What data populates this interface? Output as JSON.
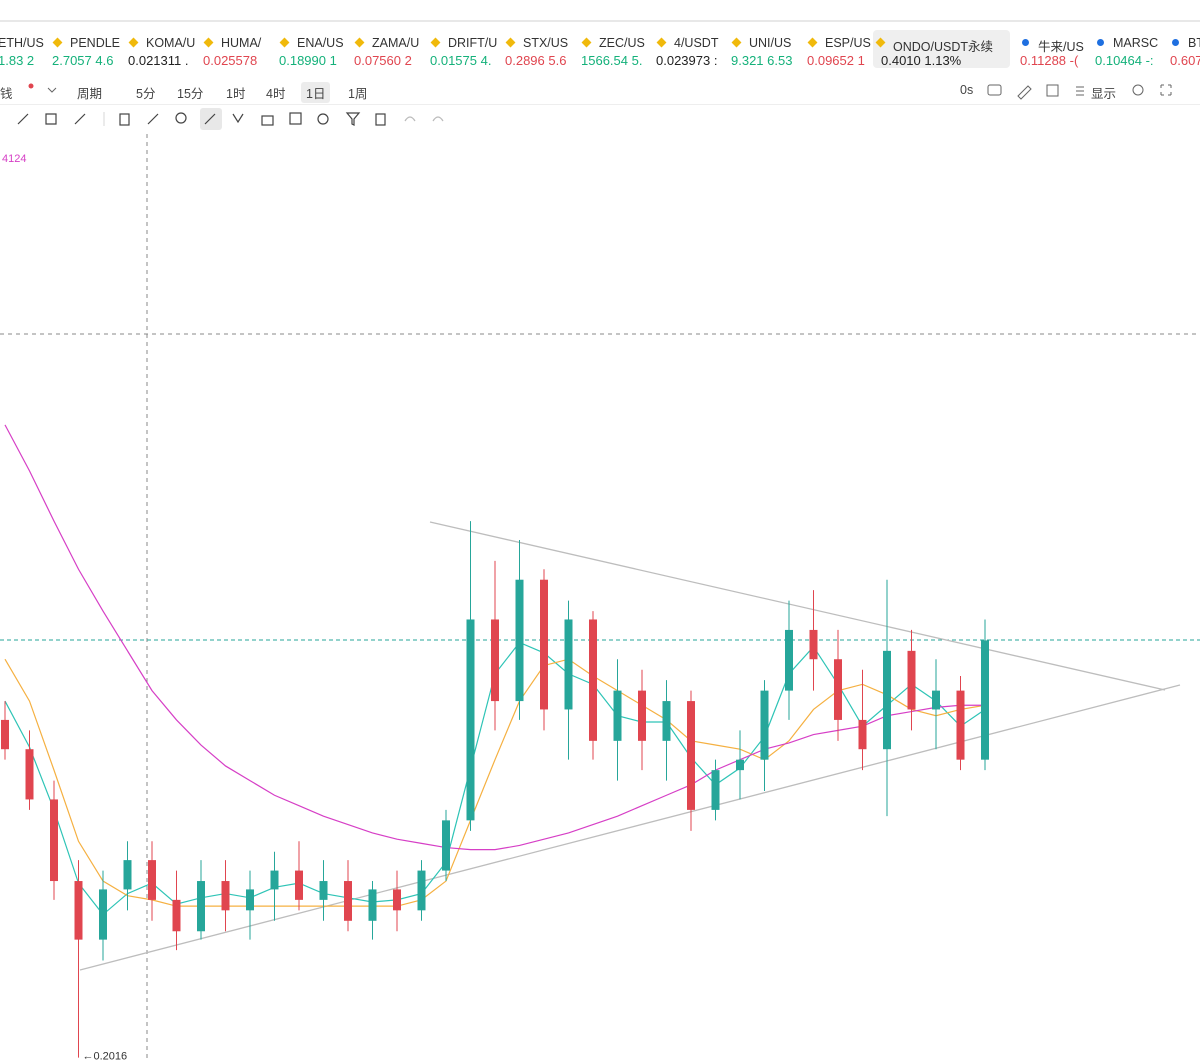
{
  "tickers": [
    {
      "name": "ETH/US",
      "quote": "1.83 2",
      "color": "#14b17a",
      "icon_color": null
    },
    {
      "name": "PENDLE",
      "quote": "2.7057 4.6",
      "color": "#14b17a",
      "icon_color": "#f0b90b"
    },
    {
      "name": "KOMA/U",
      "quote": "0.021311 .",
      "color": "#222222",
      "icon_color": "#f0b90b"
    },
    {
      "name": "HUMA/",
      "quote": "0.025578",
      "color": "#e0454f",
      "icon_color": "#f0b90b"
    },
    {
      "name": "ENA/US",
      "quote": "0.18990 1",
      "color": "#14b17a",
      "icon_color": "#f0b90b"
    },
    {
      "name": "ZAMA/U",
      "quote": "0.07560 2",
      "color": "#e0454f",
      "icon_color": "#f0b90b"
    },
    {
      "name": "DRIFT/U",
      "quote": "0.01575 4.",
      "color": "#14b17a",
      "icon_color": "#f0b90b"
    },
    {
      "name": "STX/US",
      "quote": "0.2896 5.6",
      "color": "#e0454f",
      "icon_color": "#f0b90b"
    },
    {
      "name": "ZEC/US",
      "quote": "1566.54 5.",
      "color": "#14b17a",
      "icon_color": "#f0b90b"
    },
    {
      "name": "4/USDT",
      "quote": "0.023973 :",
      "color": "#222222",
      "icon_color": "#f0b90b"
    },
    {
      "name": "UNI/US",
      "quote": "9.321 6.53",
      "color": "#14b17a",
      "icon_color": "#f0b90b"
    },
    {
      "name": "ESP/US",
      "quote": "0.09652 1",
      "color": "#e0454f",
      "icon_color": "#f0b90b"
    },
    {
      "name": "ONDO/USDT永续",
      "quote": "0.4010  1.13%",
      "color": "#222222",
      "icon_color": "#f0b90b",
      "selected": true
    },
    {
      "name": "牛来/US",
      "quote": "0.11288 -(",
      "color": "#e0454f",
      "icon_color": "#1e6fe0"
    },
    {
      "name": "MARSC",
      "quote": "0.10464 -:",
      "color": "#14b17a",
      "icon_color": "#1e6fe0"
    },
    {
      "name": "BT",
      "quote": "0.607",
      "color": "#e0454f",
      "icon_color": "#1e6fe0"
    }
  ],
  "toolbar": {
    "left": [
      "钱",
      "周期"
    ],
    "intervals": [
      "5分",
      "15分",
      "1时",
      "4时",
      "1日",
      "1周"
    ],
    "selected_interval": 4,
    "timer": "0s",
    "display": "显示"
  },
  "chart": {
    "ma_label": "4124",
    "ylim": [
      0.2,
      0.643
    ],
    "up_color": "#26a69a",
    "down_color": "#e0454f",
    "candles": [
      [
        0.363,
        0.372,
        0.344,
        0.349
      ],
      [
        0.349,
        0.358,
        0.32,
        0.325
      ],
      [
        0.325,
        0.334,
        0.277,
        0.286
      ],
      [
        0.286,
        0.296,
        0.2016,
        0.258
      ],
      [
        0.258,
        0.291,
        0.248,
        0.282
      ],
      [
        0.282,
        0.305,
        0.272,
        0.296
      ],
      [
        0.296,
        0.305,
        0.267,
        0.277
      ],
      [
        0.277,
        0.291,
        0.253,
        0.262
      ],
      [
        0.262,
        0.296,
        0.258,
        0.286
      ],
      [
        0.286,
        0.296,
        0.262,
        0.272
      ],
      [
        0.272,
        0.291,
        0.258,
        0.282
      ],
      [
        0.282,
        0.3,
        0.267,
        0.291
      ],
      [
        0.291,
        0.305,
        0.272,
        0.277
      ],
      [
        0.277,
        0.296,
        0.267,
        0.286
      ],
      [
        0.286,
        0.296,
        0.262,
        0.267
      ],
      [
        0.267,
        0.286,
        0.258,
        0.282
      ],
      [
        0.282,
        0.291,
        0.262,
        0.272
      ],
      [
        0.272,
        0.296,
        0.267,
        0.291
      ],
      [
        0.291,
        0.32,
        0.286,
        0.315
      ],
      [
        0.315,
        0.458,
        0.31,
        0.411
      ],
      [
        0.411,
        0.439,
        0.358,
        0.372
      ],
      [
        0.372,
        0.449,
        0.363,
        0.43
      ],
      [
        0.43,
        0.435,
        0.358,
        0.368
      ],
      [
        0.368,
        0.42,
        0.344,
        0.411
      ],
      [
        0.411,
        0.415,
        0.344,
        0.353
      ],
      [
        0.353,
        0.392,
        0.334,
        0.377
      ],
      [
        0.377,
        0.387,
        0.339,
        0.353
      ],
      [
        0.353,
        0.382,
        0.334,
        0.372
      ],
      [
        0.372,
        0.377,
        0.31,
        0.32
      ],
      [
        0.32,
        0.344,
        0.315,
        0.339
      ],
      [
        0.339,
        0.358,
        0.325,
        0.344
      ],
      [
        0.344,
        0.382,
        0.329,
        0.377
      ],
      [
        0.377,
        0.42,
        0.363,
        0.406
      ],
      [
        0.406,
        0.425,
        0.377,
        0.392
      ],
      [
        0.392,
        0.406,
        0.353,
        0.363
      ],
      [
        0.363,
        0.387,
        0.339,
        0.349
      ],
      [
        0.349,
        0.43,
        0.317,
        0.396
      ],
      [
        0.396,
        0.406,
        0.358,
        0.368
      ],
      [
        0.368,
        0.392,
        0.349,
        0.377
      ],
      [
        0.377,
        0.384,
        0.339,
        0.344
      ],
      [
        0.344,
        0.411,
        0.339,
        0.401
      ]
    ],
    "low_index": 3,
    "ma": [
      {
        "color": "#2ec4b6",
        "values": [
          0.372,
          0.35,
          0.32,
          0.285,
          0.27,
          0.28,
          0.285,
          0.275,
          0.278,
          0.28,
          0.278,
          0.283,
          0.285,
          0.28,
          0.278,
          0.276,
          0.277,
          0.28,
          0.295,
          0.34,
          0.385,
          0.4,
          0.395,
          0.385,
          0.38,
          0.365,
          0.362,
          0.362,
          0.345,
          0.332,
          0.34,
          0.355,
          0.385,
          0.398,
          0.38,
          0.36,
          0.37,
          0.38,
          0.372,
          0.36,
          0.368
        ]
      },
      {
        "color": "#f5b041",
        "values": [
          0.392,
          0.372,
          0.339,
          0.305,
          0.286,
          0.279,
          0.277,
          0.274,
          0.274,
          0.274,
          0.274,
          0.274,
          0.274,
          0.274,
          0.274,
          0.274,
          0.274,
          0.277,
          0.286,
          0.315,
          0.344,
          0.372,
          0.389,
          0.392,
          0.384,
          0.377,
          0.37,
          0.363,
          0.353,
          0.351,
          0.349,
          0.344,
          0.353,
          0.368,
          0.377,
          0.38,
          0.375,
          0.368,
          0.365,
          0.368,
          0.37
        ]
      },
      {
        "color": "#d63fc6",
        "values": [
          0.504,
          0.482,
          0.458,
          0.435,
          0.415,
          0.396,
          0.377,
          0.363,
          0.351,
          0.341,
          0.334,
          0.327,
          0.322,
          0.317,
          0.313,
          0.309,
          0.306,
          0.304,
          0.302,
          0.301,
          0.301,
          0.303,
          0.306,
          0.309,
          0.313,
          0.317,
          0.322,
          0.327,
          0.332,
          0.339,
          0.344,
          0.349,
          0.352,
          0.356,
          0.358,
          0.36,
          0.365,
          0.367,
          0.369,
          0.37,
          0.37
        ]
      }
    ]
  }
}
